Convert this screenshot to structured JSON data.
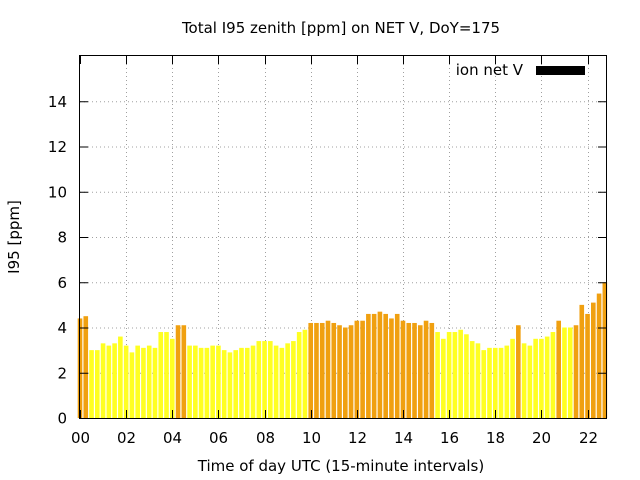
{
  "chart_data": {
    "type": "bar",
    "title": "Total I95 zenith [ppm] on NET V, DoY=175",
    "xlabel": "Time of day UTC (15-minute intervals)",
    "ylabel": "I95 [ppm]",
    "xlim": [
      0,
      22.8
    ],
    "ylim": [
      0,
      16
    ],
    "grid": true,
    "legend": {
      "position": "top-right",
      "label": "ion net V",
      "color": "#000000"
    },
    "x_ticks": [
      "00",
      "02",
      "04",
      "06",
      "08",
      "10",
      "12",
      "14",
      "16",
      "18",
      "20",
      "22"
    ],
    "y_ticks": [
      "0",
      "2",
      "4",
      "6",
      "8",
      "10",
      "12",
      "14"
    ],
    "colors": {
      "low": "#ffff22",
      "high": "#f0a010"
    },
    "bars": [
      {
        "x": 0.0,
        "value": 4.4,
        "color": "high"
      },
      {
        "x": 0.25,
        "value": 4.5,
        "color": "high"
      },
      {
        "x": 0.5,
        "value": 3.0,
        "color": "low"
      },
      {
        "x": 0.75,
        "value": 3.0,
        "color": "low"
      },
      {
        "x": 1.0,
        "value": 3.3,
        "color": "low"
      },
      {
        "x": 1.25,
        "value": 3.2,
        "color": "low"
      },
      {
        "x": 1.5,
        "value": 3.3,
        "color": "low"
      },
      {
        "x": 1.75,
        "value": 3.6,
        "color": "low"
      },
      {
        "x": 2.0,
        "value": 3.2,
        "color": "low"
      },
      {
        "x": 2.25,
        "value": 2.9,
        "color": "low"
      },
      {
        "x": 2.5,
        "value": 3.2,
        "color": "low"
      },
      {
        "x": 2.75,
        "value": 3.1,
        "color": "low"
      },
      {
        "x": 3.0,
        "value": 3.2,
        "color": "low"
      },
      {
        "x": 3.25,
        "value": 3.1,
        "color": "low"
      },
      {
        "x": 3.5,
        "value": 3.8,
        "color": "low"
      },
      {
        "x": 3.75,
        "value": 3.8,
        "color": "low"
      },
      {
        "x": 4.0,
        "value": 3.5,
        "color": "low"
      },
      {
        "x": 4.25,
        "value": 4.1,
        "color": "high"
      },
      {
        "x": 4.5,
        "value": 4.1,
        "color": "high"
      },
      {
        "x": 4.75,
        "value": 3.2,
        "color": "low"
      },
      {
        "x": 5.0,
        "value": 3.2,
        "color": "low"
      },
      {
        "x": 5.25,
        "value": 3.1,
        "color": "low"
      },
      {
        "x": 5.5,
        "value": 3.1,
        "color": "low"
      },
      {
        "x": 5.75,
        "value": 3.2,
        "color": "low"
      },
      {
        "x": 6.0,
        "value": 3.2,
        "color": "low"
      },
      {
        "x": 6.25,
        "value": 3.0,
        "color": "low"
      },
      {
        "x": 6.5,
        "value": 2.9,
        "color": "low"
      },
      {
        "x": 6.75,
        "value": 3.0,
        "color": "low"
      },
      {
        "x": 7.0,
        "value": 3.1,
        "color": "low"
      },
      {
        "x": 7.25,
        "value": 3.1,
        "color": "low"
      },
      {
        "x": 7.5,
        "value": 3.2,
        "color": "low"
      },
      {
        "x": 7.75,
        "value": 3.4,
        "color": "low"
      },
      {
        "x": 8.0,
        "value": 3.4,
        "color": "low"
      },
      {
        "x": 8.25,
        "value": 3.4,
        "color": "low"
      },
      {
        "x": 8.5,
        "value": 3.2,
        "color": "low"
      },
      {
        "x": 8.75,
        "value": 3.1,
        "color": "low"
      },
      {
        "x": 9.0,
        "value": 3.3,
        "color": "low"
      },
      {
        "x": 9.25,
        "value": 3.4,
        "color": "low"
      },
      {
        "x": 9.5,
        "value": 3.8,
        "color": "low"
      },
      {
        "x": 9.75,
        "value": 3.9,
        "color": "low"
      },
      {
        "x": 10.0,
        "value": 4.2,
        "color": "high"
      },
      {
        "x": 10.25,
        "value": 4.2,
        "color": "high"
      },
      {
        "x": 10.5,
        "value": 4.2,
        "color": "high"
      },
      {
        "x": 10.75,
        "value": 4.3,
        "color": "high"
      },
      {
        "x": 11.0,
        "value": 4.2,
        "color": "high"
      },
      {
        "x": 11.25,
        "value": 4.1,
        "color": "high"
      },
      {
        "x": 11.5,
        "value": 4.0,
        "color": "high"
      },
      {
        "x": 11.75,
        "value": 4.1,
        "color": "high"
      },
      {
        "x": 12.0,
        "value": 4.3,
        "color": "high"
      },
      {
        "x": 12.25,
        "value": 4.3,
        "color": "high"
      },
      {
        "x": 12.5,
        "value": 4.6,
        "color": "high"
      },
      {
        "x": 12.75,
        "value": 4.6,
        "color": "high"
      },
      {
        "x": 13.0,
        "value": 4.7,
        "color": "high"
      },
      {
        "x": 13.25,
        "value": 4.6,
        "color": "high"
      },
      {
        "x": 13.5,
        "value": 4.4,
        "color": "high"
      },
      {
        "x": 13.75,
        "value": 4.6,
        "color": "high"
      },
      {
        "x": 14.0,
        "value": 4.3,
        "color": "high"
      },
      {
        "x": 14.25,
        "value": 4.2,
        "color": "high"
      },
      {
        "x": 14.5,
        "value": 4.2,
        "color": "high"
      },
      {
        "x": 14.75,
        "value": 4.1,
        "color": "high"
      },
      {
        "x": 15.0,
        "value": 4.3,
        "color": "high"
      },
      {
        "x": 15.25,
        "value": 4.2,
        "color": "high"
      },
      {
        "x": 15.5,
        "value": 3.8,
        "color": "low"
      },
      {
        "x": 15.75,
        "value": 3.5,
        "color": "low"
      },
      {
        "x": 16.0,
        "value": 3.8,
        "color": "low"
      },
      {
        "x": 16.25,
        "value": 3.8,
        "color": "low"
      },
      {
        "x": 16.5,
        "value": 3.9,
        "color": "low"
      },
      {
        "x": 16.75,
        "value": 3.7,
        "color": "low"
      },
      {
        "x": 17.0,
        "value": 3.4,
        "color": "low"
      },
      {
        "x": 17.25,
        "value": 3.3,
        "color": "low"
      },
      {
        "x": 17.5,
        "value": 3.0,
        "color": "low"
      },
      {
        "x": 17.75,
        "value": 3.1,
        "color": "low"
      },
      {
        "x": 18.0,
        "value": 3.1,
        "color": "low"
      },
      {
        "x": 18.25,
        "value": 3.1,
        "color": "low"
      },
      {
        "x": 18.5,
        "value": 3.2,
        "color": "low"
      },
      {
        "x": 18.75,
        "value": 3.5,
        "color": "low"
      },
      {
        "x": 19.0,
        "value": 4.1,
        "color": "high"
      },
      {
        "x": 19.25,
        "value": 3.3,
        "color": "low"
      },
      {
        "x": 19.5,
        "value": 3.2,
        "color": "low"
      },
      {
        "x": 19.75,
        "value": 3.5,
        "color": "low"
      },
      {
        "x": 20.0,
        "value": 3.5,
        "color": "low"
      },
      {
        "x": 20.25,
        "value": 3.6,
        "color": "low"
      },
      {
        "x": 20.5,
        "value": 3.8,
        "color": "low"
      },
      {
        "x": 20.75,
        "value": 4.3,
        "color": "high"
      },
      {
        "x": 21.0,
        "value": 4.0,
        "color": "low"
      },
      {
        "x": 21.25,
        "value": 4.0,
        "color": "low"
      },
      {
        "x": 21.5,
        "value": 4.1,
        "color": "high"
      },
      {
        "x": 21.75,
        "value": 5.0,
        "color": "high"
      },
      {
        "x": 22.0,
        "value": 4.6,
        "color": "high"
      },
      {
        "x": 22.25,
        "value": 5.1,
        "color": "high"
      },
      {
        "x": 22.5,
        "value": 5.5,
        "color": "high"
      },
      {
        "x": 22.75,
        "value": 6.0,
        "color": "high"
      }
    ]
  }
}
